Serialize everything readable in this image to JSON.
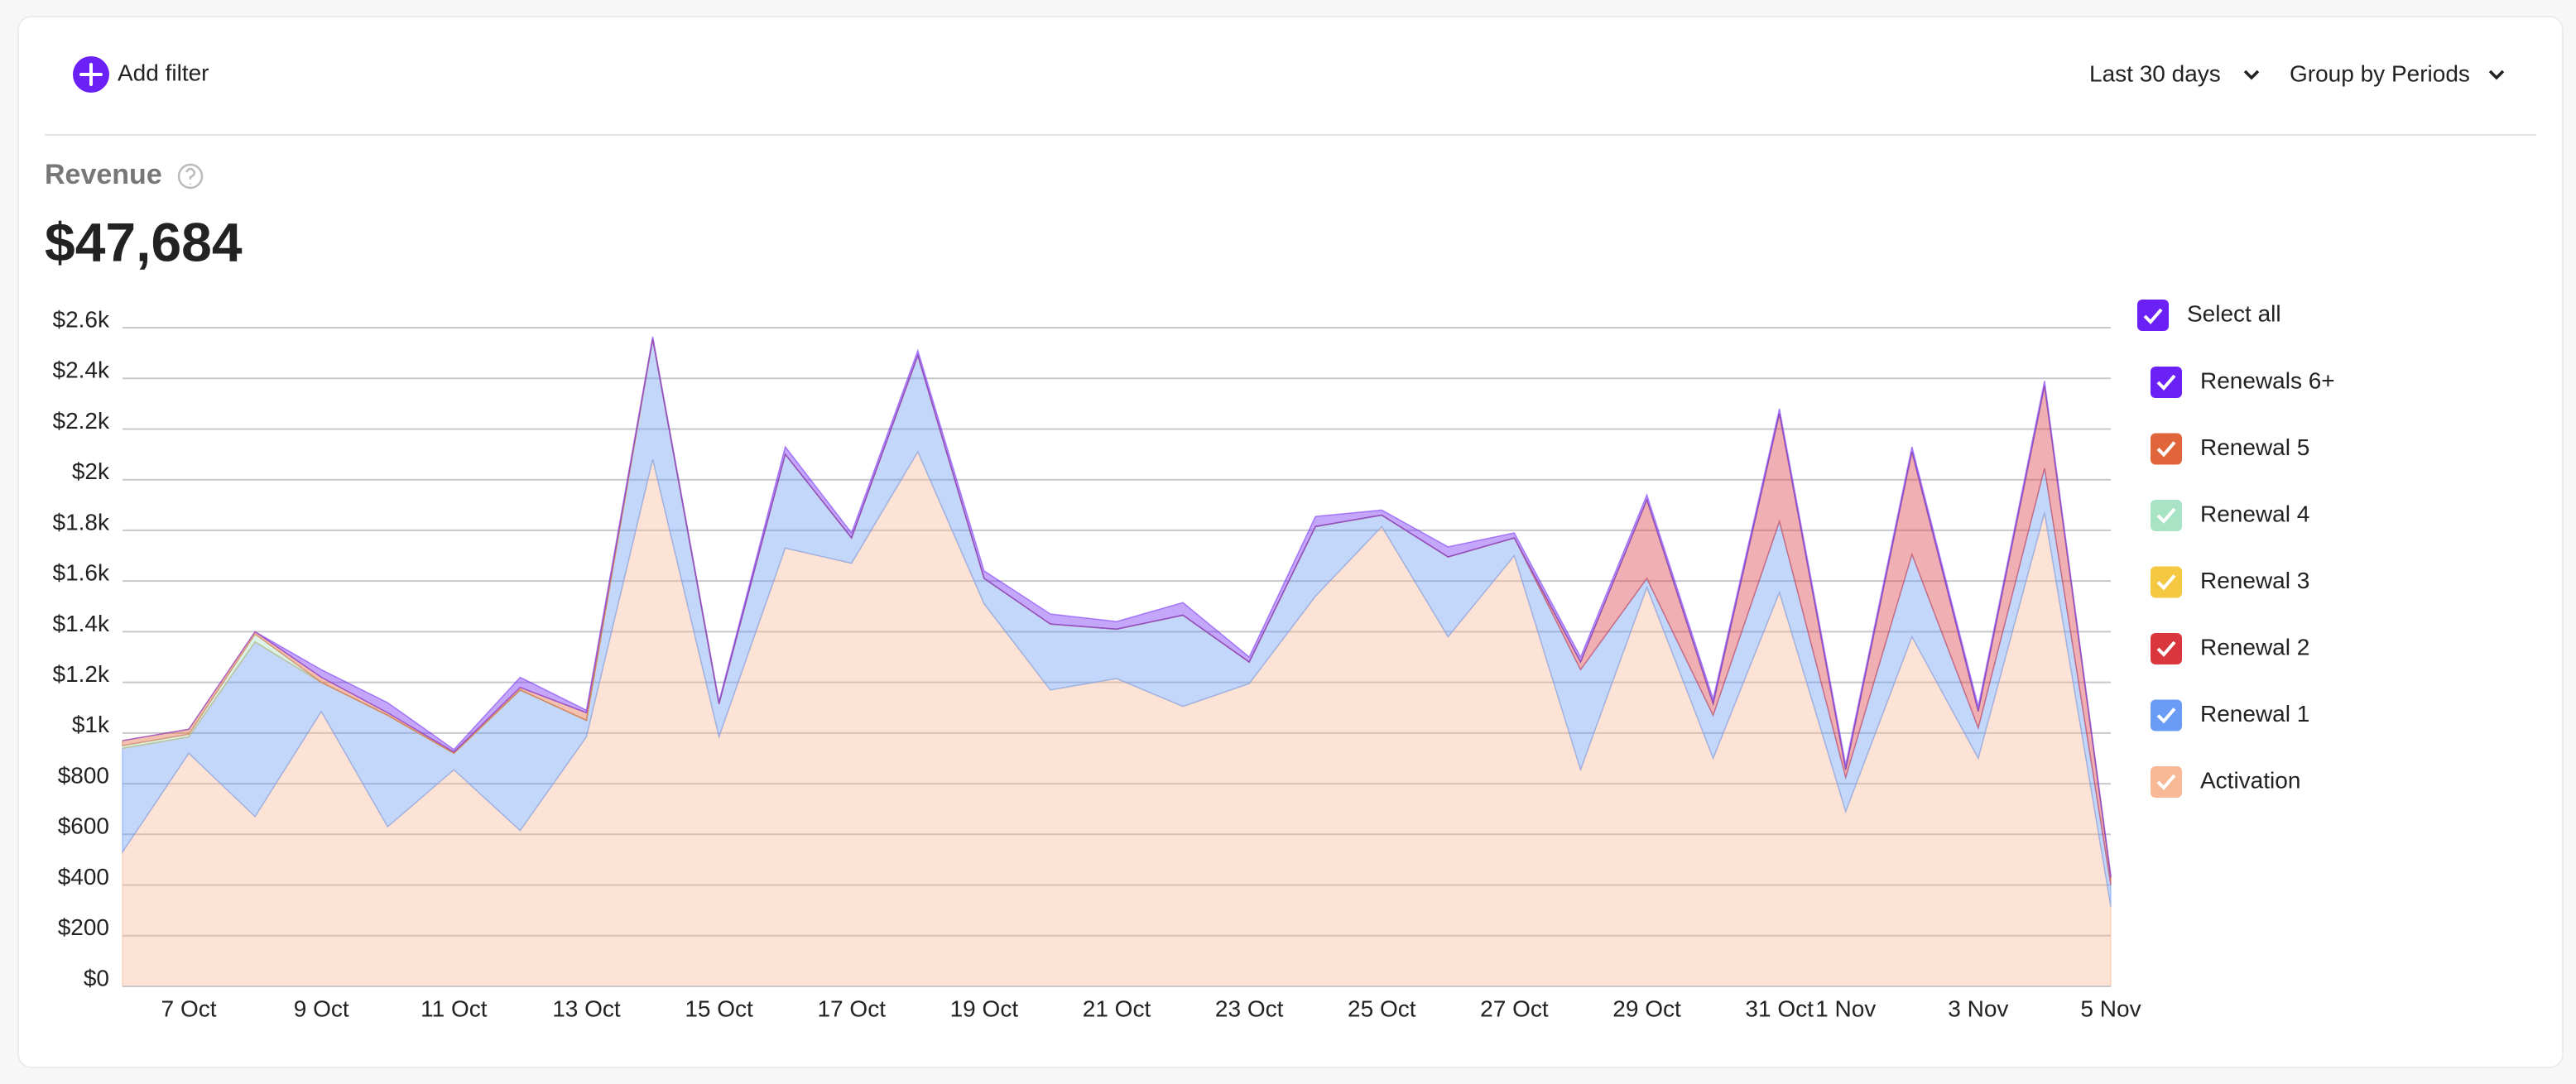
{
  "toolbar": {
    "add_filter": "Add filter",
    "period": "Last 30 days",
    "group": "Group by Periods"
  },
  "summary": {
    "metric": "Revenue",
    "total": "$47,684"
  },
  "legend": {
    "select_all": "Select all"
  },
  "chart_data": {
    "type": "stacked-area",
    "categories": [
      null,
      "7 Oct",
      null,
      "9 Oct",
      null,
      "11 Oct",
      null,
      "13 Oct",
      null,
      "15 Oct",
      null,
      "17 Oct",
      null,
      "19 Oct",
      null,
      "21 Oct",
      null,
      "23 Oct",
      null,
      "25 Oct",
      null,
      "27 Oct",
      null,
      "29 Oct",
      null,
      "31 Oct",
      "1 Nov",
      null,
      "3 Nov",
      null,
      "5 Nov"
    ],
    "ylim": [
      0,
      2600
    ],
    "yticks": [
      {
        "value": 0,
        "label": "$0"
      },
      {
        "value": 200,
        "label": "$200"
      },
      {
        "value": 400,
        "label": "$400"
      },
      {
        "value": 600,
        "label": "$600"
      },
      {
        "value": 800,
        "label": "$800"
      },
      {
        "value": 1000,
        "label": "$1k"
      },
      {
        "value": 1200,
        "label": "$1.2k"
      },
      {
        "value": 1400,
        "label": "$1.4k"
      },
      {
        "value": 1600,
        "label": "$1.6k"
      },
      {
        "value": 1800,
        "label": "$1.8k"
      },
      {
        "value": 2000,
        "label": "$2k"
      },
      {
        "value": 2200,
        "label": "$2.2k"
      },
      {
        "value": 2400,
        "label": "$2.4k"
      },
      {
        "value": 2600,
        "label": "$2.6k"
      }
    ],
    "grid": true,
    "series": [
      {
        "name": "Activation",
        "color": "#f7b896",
        "values": [
          530,
          920,
          670,
          1085,
          630,
          855,
          615,
          985,
          2080,
          985,
          1730,
          1670,
          2110,
          1510,
          1170,
          1215,
          1105,
          1195,
          1540,
          1815,
          1380,
          1700,
          855,
          1575,
          900,
          1555,
          690,
          1380,
          900,
          1870,
          315
        ]
      },
      {
        "name": "Renewal 1",
        "color": "#6a9cf5",
        "values": [
          410,
          65,
          690,
          115,
          440,
          65,
          555,
          65,
          475,
          130,
          370,
          100,
          380,
          100,
          260,
          195,
          360,
          85,
          275,
          45,
          315,
          70,
          395,
          35,
          170,
          280,
          135,
          325,
          120,
          175,
          85
        ]
      },
      {
        "name": "Renewal 2",
        "color": "#d9363e",
        "values": [
          0,
          0,
          0,
          0,
          0,
          0,
          0,
          0,
          0,
          0,
          0,
          0,
          0,
          0,
          0,
          0,
          0,
          0,
          0,
          0,
          0,
          0,
          30,
          310,
          45,
          425,
          30,
          405,
          65,
          325,
          30
        ]
      },
      {
        "name": "Renewal 3",
        "color": "#f5c842",
        "values": [
          0,
          0,
          0,
          0,
          0,
          0,
          0,
          0,
          0,
          0,
          0,
          0,
          0,
          0,
          0,
          0,
          0,
          0,
          0,
          0,
          0,
          0,
          0,
          0,
          0,
          0,
          0,
          0,
          0,
          0,
          0
        ]
      },
      {
        "name": "Renewal 4",
        "color": "#a7e3c4",
        "values": [
          10,
          10,
          30,
          0,
          0,
          0,
          0,
          0,
          0,
          0,
          0,
          0,
          0,
          0,
          0,
          0,
          0,
          0,
          0,
          0,
          0,
          0,
          0,
          0,
          0,
          0,
          0,
          0,
          0,
          0,
          0
        ]
      },
      {
        "name": "Renewal 5",
        "color": "#e0653a",
        "values": [
          20,
          20,
          10,
          20,
          10,
          5,
          10,
          30,
          0,
          0,
          0,
          0,
          0,
          0,
          0,
          0,
          0,
          0,
          0,
          0,
          0,
          0,
          0,
          0,
          0,
          0,
          0,
          0,
          0,
          0,
          0
        ]
      },
      {
        "name": "Renewals 6+",
        "color": "#6b21f5",
        "values": [
          0,
          0,
          0,
          30,
          40,
          10,
          40,
          10,
          10,
          10,
          30,
          20,
          20,
          30,
          40,
          30,
          50,
          20,
          40,
          20,
          40,
          20,
          20,
          20,
          20,
          20,
          20,
          20,
          20,
          20,
          10
        ]
      }
    ]
  }
}
